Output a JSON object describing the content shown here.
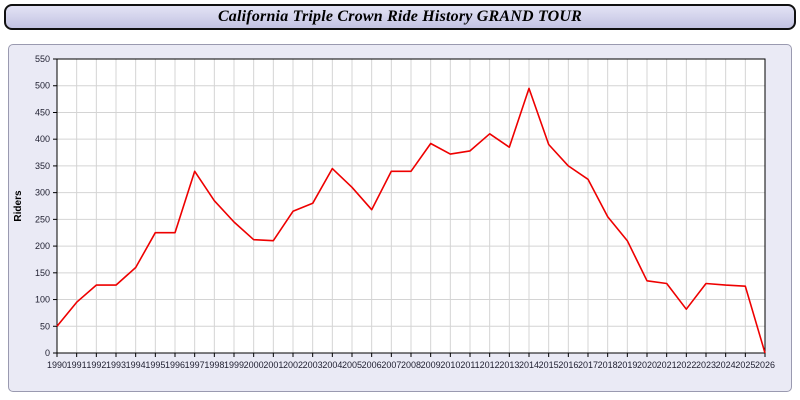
{
  "header": {
    "title": "California Triple Crown Ride History GRAND TOUR"
  },
  "chart_data": {
    "type": "line",
    "title": "California Triple Crown Ride History GRAND TOUR",
    "xlabel": "",
    "ylabel": "Riders",
    "x": [
      1990,
      1991,
      1992,
      1993,
      1994,
      1995,
      1996,
      1997,
      1998,
      1999,
      2000,
      2001,
      2002,
      2003,
      2004,
      2005,
      2006,
      2007,
      2008,
      2009,
      2010,
      2011,
      2012,
      2013,
      2014,
      2015,
      2016,
      2017,
      2018,
      2019,
      2020,
      2021,
      2022,
      2023,
      2024,
      2025,
      2026
    ],
    "values": [
      50,
      95,
      127,
      127,
      160,
      225,
      225,
      340,
      285,
      245,
      212,
      210,
      265,
      280,
      345,
      310,
      268,
      340,
      340,
      392,
      372,
      378,
      410,
      385,
      495,
      390,
      350,
      325,
      255,
      210,
      135,
      130,
      82,
      130,
      127,
      125,
      0
    ],
    "ylim": [
      0,
      550
    ],
    "ytick_step": 50,
    "grid": true,
    "legend": "none",
    "line_color": "#ee0000",
    "grid_color": "#d4d4d4",
    "plot_bg": "#ffffff",
    "panel_bg": "#eaeaf5",
    "tick_label_color": "#222233"
  }
}
